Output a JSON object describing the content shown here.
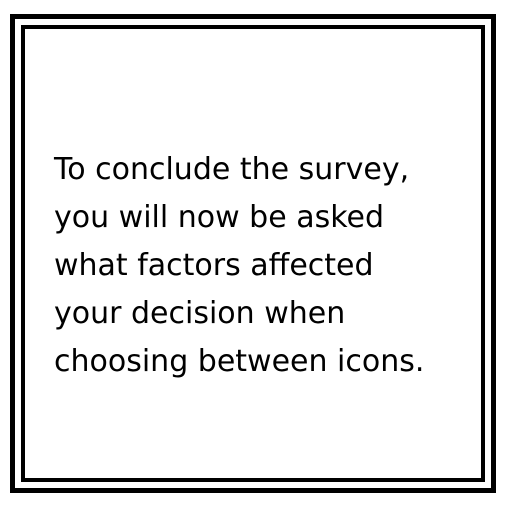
{
  "message": {
    "lines": [
      "To conclude the survey,",
      "you will now be asked",
      "what factors affected",
      "your decision when",
      "choosing between icons."
    ]
  }
}
